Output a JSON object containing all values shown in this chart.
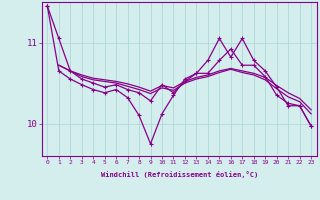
{
  "background_color": "#d4eeee",
  "grid_color": "#add8d8",
  "line_color": "#880088",
  "xlabel": "Windchill (Refroidissement éolien,°C)",
  "x_ticks": [
    0,
    1,
    2,
    3,
    4,
    5,
    6,
    7,
    8,
    9,
    10,
    11,
    12,
    13,
    14,
    15,
    16,
    17,
    18,
    19,
    20,
    21,
    22,
    23
  ],
  "y_ticks": [
    10,
    11
  ],
  "ylim": [
    9.6,
    11.5
  ],
  "xlim": [
    -0.5,
    23.5
  ],
  "series1_x": [
    0,
    1,
    2,
    3,
    4,
    5,
    6,
    7,
    8,
    9,
    10,
    11,
    12,
    13,
    14,
    15,
    16,
    17,
    18,
    19,
    20,
    21,
    22,
    23
  ],
  "series1_y": [
    11.45,
    11.05,
    10.65,
    10.55,
    10.5,
    10.45,
    10.48,
    10.42,
    10.38,
    10.28,
    10.48,
    10.38,
    10.52,
    10.62,
    10.62,
    10.78,
    10.92,
    10.72,
    10.72,
    10.58,
    10.35,
    10.25,
    10.22,
    9.97
  ],
  "series2_x": [
    0,
    1,
    2,
    3,
    4,
    5,
    6,
    7,
    8,
    9,
    10,
    11,
    12,
    13,
    14,
    15,
    16,
    17,
    18,
    19,
    20,
    21,
    22,
    23
  ],
  "series2_y": [
    11.45,
    10.65,
    10.55,
    10.48,
    10.42,
    10.38,
    10.42,
    10.32,
    10.1,
    9.75,
    10.12,
    10.35,
    10.55,
    10.62,
    10.78,
    11.05,
    10.82,
    11.05,
    10.78,
    10.65,
    10.45,
    10.22,
    10.22,
    9.97
  ],
  "series3_x": [
    1,
    2,
    3,
    4,
    5,
    6,
    7,
    8,
    9,
    10,
    11,
    12,
    13,
    14,
    15,
    16,
    17,
    18,
    19,
    20,
    21,
    22,
    23
  ],
  "series3_y": [
    10.72,
    10.65,
    10.58,
    10.54,
    10.52,
    10.5,
    10.46,
    10.42,
    10.37,
    10.44,
    10.41,
    10.5,
    10.55,
    10.58,
    10.63,
    10.67,
    10.63,
    10.6,
    10.54,
    10.43,
    10.33,
    10.27,
    10.12
  ],
  "series4_x": [
    1,
    2,
    3,
    4,
    5,
    6,
    7,
    8,
    9,
    10,
    11,
    12,
    13,
    14,
    15,
    16,
    17,
    18,
    19,
    20,
    21,
    22,
    23
  ],
  "series4_y": [
    10.72,
    10.65,
    10.6,
    10.56,
    10.54,
    10.52,
    10.49,
    10.45,
    10.4,
    10.47,
    10.44,
    10.52,
    10.57,
    10.6,
    10.65,
    10.68,
    10.65,
    10.62,
    10.57,
    10.47,
    10.38,
    10.31,
    10.17
  ]
}
